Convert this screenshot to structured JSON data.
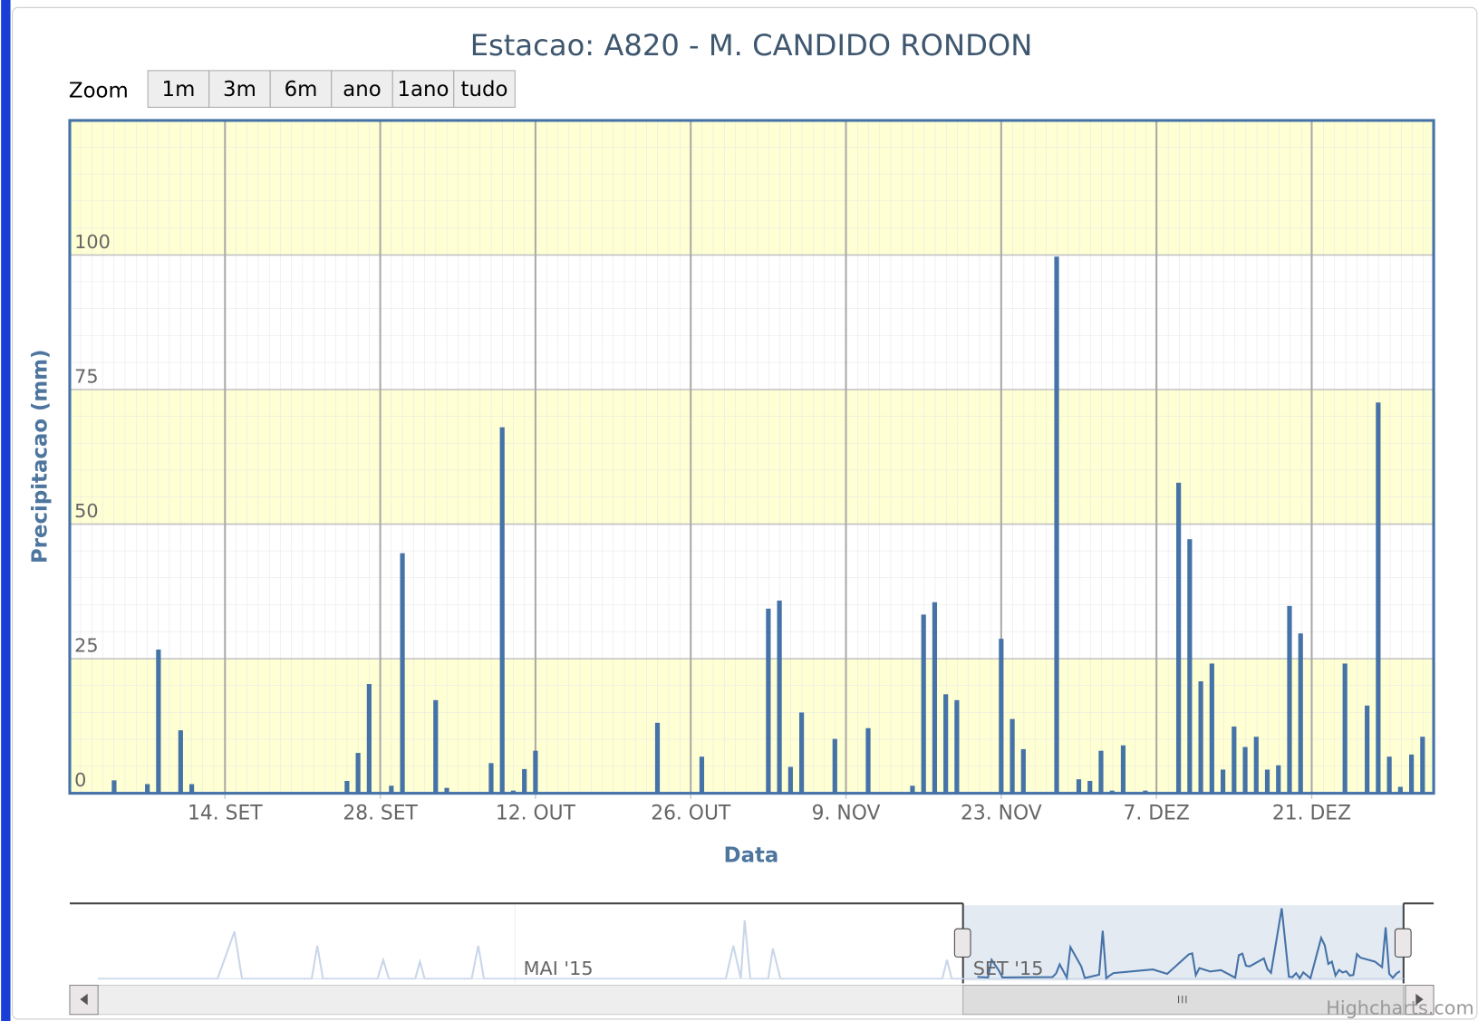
{
  "chart_data": {
    "type": "bar",
    "title": "Estacao: A820 - M. CANDIDO RONDON",
    "zoom": {
      "label": "Zoom",
      "buttons": [
        "1m",
        "3m",
        "6m",
        "ano",
        "1ano",
        "tudo"
      ]
    },
    "x_label": "Data",
    "y_label": "Precipitacao (mm)",
    "color": "#4572a7",
    "grid": true,
    "xlim": [
      "2015-08-31",
      "2016-01-01"
    ],
    "xticks": [
      {
        "value": "2015-09-14",
        "label": "14. SET"
      },
      {
        "value": "2015-09-28",
        "label": "28. SET"
      },
      {
        "value": "2015-10-12",
        "label": "12. OUT"
      },
      {
        "value": "2015-10-26",
        "label": "26. OUT"
      },
      {
        "value": "2015-11-09",
        "label": "9. NOV"
      },
      {
        "value": "2015-11-23",
        "label": "23. NOV"
      },
      {
        "value": "2015-12-07",
        "label": "7. DEZ"
      },
      {
        "value": "2015-12-21",
        "label": "21. DEZ"
      }
    ],
    "ylim": [
      0,
      125
    ],
    "yticks": [
      0,
      25,
      50,
      75,
      100
    ],
    "x": [
      "2015-09-04",
      "2015-09-07",
      "2015-09-08",
      "2015-09-10",
      "2015-09-11",
      "2015-09-25",
      "2015-09-26",
      "2015-09-27",
      "2015-09-29",
      "2015-09-30",
      "2015-10-03",
      "2015-10-04",
      "2015-10-08",
      "2015-10-09",
      "2015-10-10",
      "2015-10-11",
      "2015-10-12",
      "2015-10-23",
      "2015-10-27",
      "2015-11-02",
      "2015-11-03",
      "2015-11-04",
      "2015-11-05",
      "2015-11-08",
      "2015-11-11",
      "2015-11-15",
      "2015-11-16",
      "2015-11-17",
      "2015-11-18",
      "2015-11-19",
      "2015-11-23",
      "2015-11-24",
      "2015-11-25",
      "2015-11-28",
      "2015-11-30",
      "2015-12-01",
      "2015-12-02",
      "2015-12-03",
      "2015-12-04",
      "2015-12-06",
      "2015-12-09",
      "2015-12-10",
      "2015-12-11",
      "2015-12-12",
      "2015-12-13",
      "2015-12-14",
      "2015-12-15",
      "2015-12-16",
      "2015-12-17",
      "2015-12-18",
      "2015-12-19",
      "2015-12-20",
      "2015-12-24",
      "2015-12-26",
      "2015-12-27",
      "2015-12-28",
      "2015-12-29",
      "2015-12-30",
      "2015-12-31"
    ],
    "values": [
      2.4,
      1.7,
      26.7,
      11.7,
      1.7,
      2.3,
      7.5,
      20.3,
      1.4,
      44.6,
      17.3,
      1,
      5.6,
      68,
      0.5,
      4.5,
      7.9,
      13.1,
      6.8,
      34.3,
      35.8,
      4.9,
      15,
      10.1,
      12.1,
      1.4,
      33.2,
      35.5,
      18.4,
      17.3,
      28.7,
      13.8,
      8.2,
      99.7,
      2.6,
      2.3,
      7.9,
      0.5,
      8.9,
      0.5,
      57.7,
      47.2,
      20.8,
      24.1,
      4.4,
      12.4,
      8.6,
      10.5,
      4.4,
      5.2,
      34.8,
      29.7,
      24.1,
      16.3,
      72.6,
      6.8,
      1.2,
      7.2,
      10.5
    ],
    "navigator": {
      "labels": [
        "MAI '15",
        "SET '15"
      ]
    },
    "credit": "Highcharts.com"
  }
}
